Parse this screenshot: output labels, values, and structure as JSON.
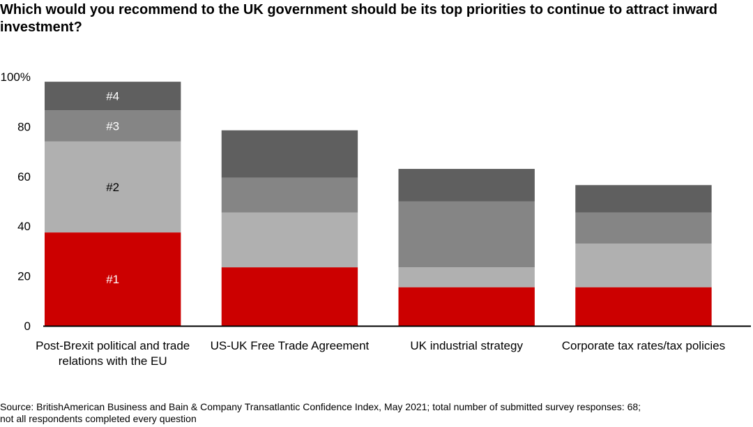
{
  "chart_data": {
    "type": "bar",
    "stacked": true,
    "title": "Which would you recommend to the UK government should be its top priorities to continue to attract inward investment?",
    "categories": [
      "Post-Brexit political and trade relations with the EU",
      "US-UK Free Trade Agreement",
      "UK industrial strategy",
      "Corporate tax rates/tax policies"
    ],
    "series": [
      {
        "name": "#1",
        "color": "#cc0000",
        "values": [
          37.5,
          23.5,
          15.5,
          15.5
        ]
      },
      {
        "name": "#2",
        "color": "#b0b0b0",
        "values": [
          36.5,
          22,
          8,
          17.5
        ]
      },
      {
        "name": "#3",
        "color": "#858585",
        "values": [
          12.5,
          14,
          26.5,
          12.5
        ]
      },
      {
        "name": "#4",
        "color": "#5f5f5f",
        "values": [
          11.5,
          19,
          13,
          11
        ]
      }
    ],
    "series_label_colors": [
      "#ffffff",
      "#000000",
      "#ffffff",
      "#ffffff"
    ],
    "yticks": [
      "0",
      "20",
      "40",
      "60",
      "80",
      "100%"
    ],
    "ytick_values": [
      0,
      20,
      40,
      60,
      80,
      100
    ],
    "ylim": [
      0,
      100
    ],
    "grid": false,
    "legend": "inline labels on first bar",
    "source": "Source: BritishAmerican Business and Bain & Company Transatlantic Confidence Index, May 2021; total number of submitted survey responses: 68;",
    "source_line2": "not all respondents completed every question"
  }
}
